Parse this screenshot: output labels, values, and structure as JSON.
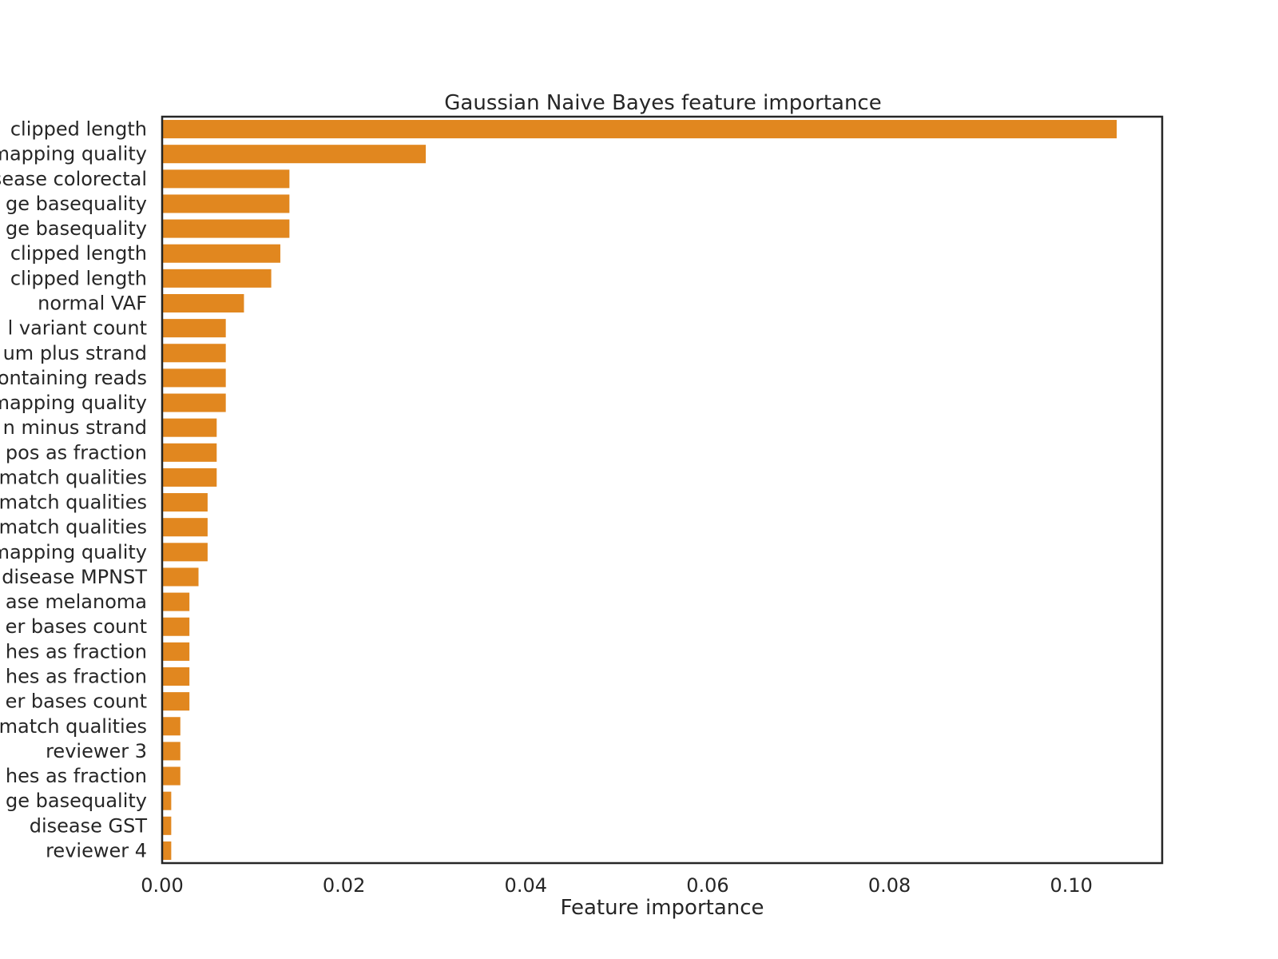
{
  "chart_data": {
    "type": "bar",
    "orientation": "horizontal",
    "title": "Gaussian Naive Bayes feature importance",
    "xlabel": "Feature importance",
    "ylabel": "",
    "xlim": [
      0,
      0.11
    ],
    "xticks": [
      0.0,
      0.02,
      0.04,
      0.06,
      0.08,
      0.1
    ],
    "xtick_labels": [
      "0.00",
      "0.02",
      "0.04",
      "0.06",
      "0.08",
      "0.10"
    ],
    "grid": false,
    "bar_color": "#e1871f",
    "categories": [
      "clipped length",
      "mapping quality",
      "disease colorectal",
      "ge basequality",
      "ge basequality",
      "clipped length",
      "clipped length",
      "normal VAF",
      "l variant count",
      "um plus strand",
      "ontaining reads",
      "mapping quality",
      "n minus strand",
      "pos as fraction",
      "match qualities",
      "match qualities",
      "match qualities",
      "mapping quality",
      "disease MPNST",
      "ase melanoma",
      "er bases count",
      "hes as fraction",
      "hes as fraction",
      "er bases count",
      "match qualities",
      "reviewer 3",
      "hes as fraction",
      "ge basequality",
      "disease GST",
      "reviewer 4"
    ],
    "values": [
      0.105,
      0.029,
      0.014,
      0.014,
      0.014,
      0.013,
      0.012,
      0.009,
      0.007,
      0.007,
      0.007,
      0.007,
      0.006,
      0.006,
      0.006,
      0.005,
      0.005,
      0.005,
      0.004,
      0.003,
      0.003,
      0.003,
      0.003,
      0.003,
      0.002,
      0.002,
      0.002,
      0.001,
      0.001,
      0.001
    ]
  }
}
